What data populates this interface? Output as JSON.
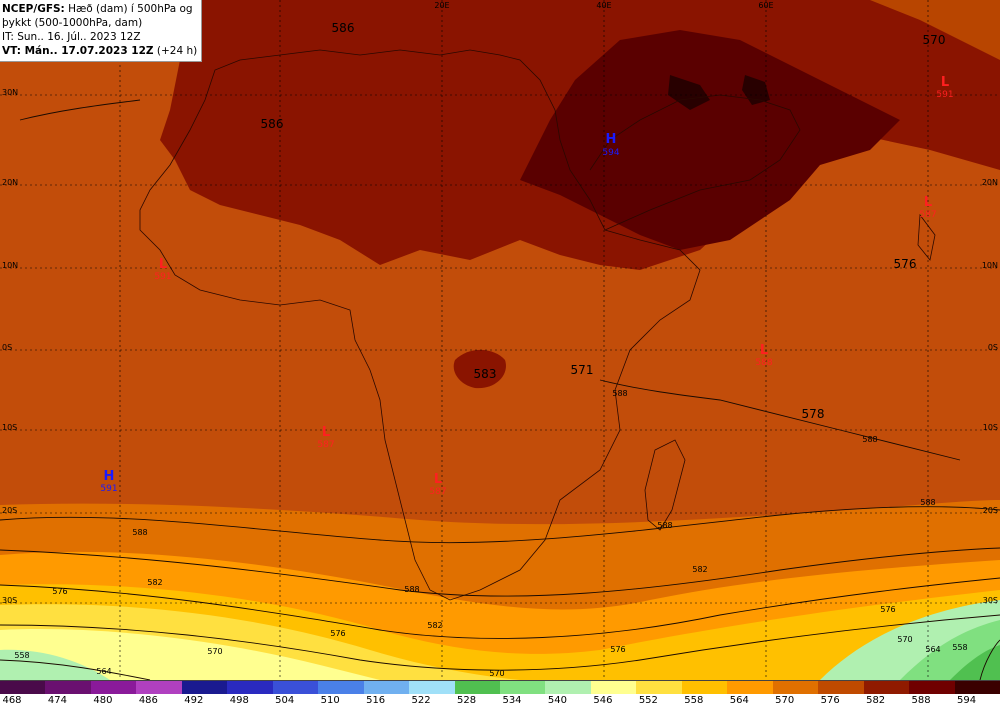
{
  "info": {
    "line1_bold": "NCEP/GFS:",
    "line1_rest": " Hæð (dam) í 500hPa og",
    "line2": "þykkt (500-1000hPa, dam)",
    "line3": "IT: Sun.. 16. Júl.. 2023 12Z",
    "line4_bold": "VT: Mán.. 17.07.2023 12Z",
    "line4_rest": " (+24 h)"
  },
  "lon_labels": [
    "20E",
    "40E",
    "60E"
  ],
  "lat_labels": [
    "30N",
    "20N",
    "10N",
    "0S",
    "10S",
    "20S",
    "30S"
  ],
  "thickness_labels": [
    "586",
    "586",
    "583",
    "571",
    "578",
    "576",
    "570"
  ],
  "contour_labels": [
    "588",
    "588",
    "588",
    "588",
    "588",
    "588",
    "582",
    "582",
    "582",
    "576",
    "576",
    "576",
    "576",
    "570",
    "570",
    "570",
    "564",
    "564",
    "558",
    "558"
  ],
  "pressure_centers": [
    {
      "type": "H",
      "value": "594",
      "color": "#1a1aff"
    },
    {
      "type": "H",
      "value": "591",
      "color": "#1a1aff"
    },
    {
      "type": "L",
      "value": "587",
      "color": "#ff2020"
    },
    {
      "type": "L",
      "value": "587",
      "color": "#ff2020"
    },
    {
      "type": "L",
      "value": "591",
      "color": "#ff2020"
    },
    {
      "type": "L",
      "value": "588",
      "color": "#ff2020"
    },
    {
      "type": "L",
      "value": "587",
      "color": "#ff2020"
    },
    {
      "type": "L",
      "value": "591",
      "color": "#ff2020"
    }
  ],
  "colorbar": {
    "colors": [
      "#4a0a4a",
      "#6a1070",
      "#8a1a9a",
      "#b040c0",
      "#1a1a90",
      "#2a2ac0",
      "#3a50d8",
      "#4a80e8",
      "#70b0f0",
      "#a0e0f8",
      "#50c050",
      "#80e080",
      "#b0f0b0",
      "#ffff90",
      "#ffe040",
      "#ffc000",
      "#ff9a00",
      "#e07000",
      "#c04a00",
      "#901a00",
      "#700000",
      "#3a0000"
    ],
    "labels": [
      "468",
      "474",
      "480",
      "486",
      "492",
      "498",
      "504",
      "510",
      "516",
      "522",
      "528",
      "534",
      "540",
      "546",
      "552",
      "558",
      "564",
      "570",
      "576",
      "582",
      "588",
      "594"
    ]
  }
}
